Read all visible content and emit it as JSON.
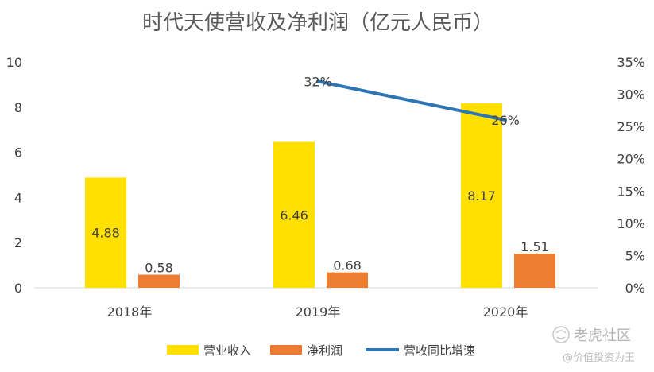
{
  "chart_data": {
    "type": "bar",
    "title": "时代天使营收及净利润（亿元人民币）",
    "categories": [
      "2018年",
      "2019年",
      "2020年"
    ],
    "series": [
      {
        "name": "营业收入",
        "type": "bar",
        "axis": "left",
        "color": "#FFE000",
        "values": [
          4.88,
          6.46,
          8.17
        ],
        "labels": [
          "4.88",
          "6.46",
          "8.17"
        ]
      },
      {
        "name": "净利润",
        "type": "bar",
        "axis": "left",
        "color": "#ED7D31",
        "values": [
          0.58,
          0.68,
          1.51
        ],
        "labels": [
          "0.58",
          "0.68",
          "1.51"
        ]
      },
      {
        "name": "营收同比增速",
        "type": "line",
        "axis": "right",
        "color": "#2E75B6",
        "values": [
          null,
          32,
          26
        ],
        "labels": [
          "",
          "32%",
          "26%"
        ]
      }
    ],
    "y_left": {
      "min": 0,
      "max": 10,
      "ticks": [
        "0",
        "2",
        "4",
        "6",
        "8",
        "10"
      ]
    },
    "y_right": {
      "min": 0,
      "max": 35,
      "ticks": [
        "0%",
        "5%",
        "10%",
        "15%",
        "20%",
        "25%",
        "30%",
        "35%"
      ]
    },
    "grid": false,
    "legend_position": "bottom"
  },
  "watermark": {
    "brand": "老虎社区",
    "slogan": "@价值投资为王"
  }
}
